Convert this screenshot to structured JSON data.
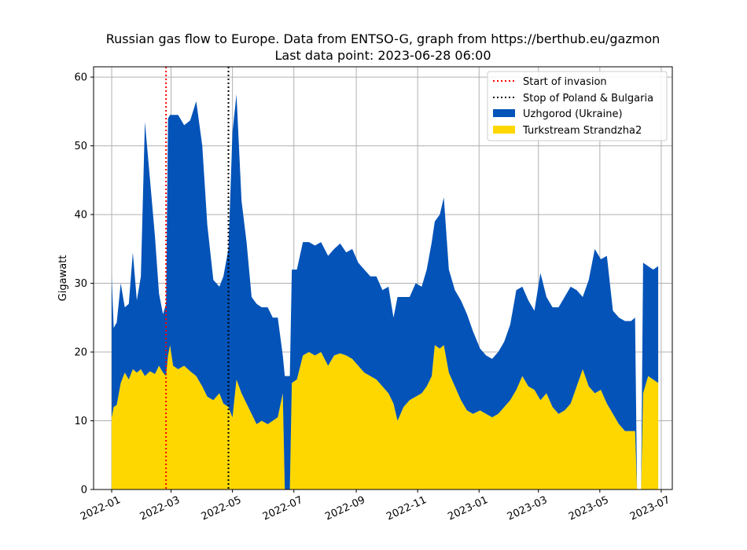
{
  "chart_data": {
    "type": "area",
    "title": "Russian gas flow to Europe. Data from ENTSO-G, graph from https://berthub.eu/gazmon",
    "subtitle": "Last data point: 2023-06-28 06:00",
    "xlabel": "",
    "ylabel": "Gigawatt",
    "xlim": [
      "2021-12-14",
      "2023-07-12"
    ],
    "ylim": [
      0,
      61.5
    ],
    "x_ticks": [
      "2022-01",
      "2022-03",
      "2022-05",
      "2022-07",
      "2022-09",
      "2022-11",
      "2023-01",
      "2023-03",
      "2023-05",
      "2023-07"
    ],
    "y_ticks": [
      0,
      10,
      20,
      30,
      40,
      50,
      60
    ],
    "grid": true,
    "legend_position": "top-right",
    "vlines": [
      {
        "name": "Start of invasion",
        "x": "2022-02-24",
        "color": "#ff0000",
        "style": "dotted"
      },
      {
        "name": "Stop of Poland & Bulgaria",
        "x": "2022-04-27",
        "color": "#000000",
        "style": "dotted"
      }
    ],
    "series": [
      {
        "name": "Turkstream Strandzha2",
        "color": "#ffd700",
        "stacked": true,
        "points": [
          [
            "2022-01-01",
            10.5
          ],
          [
            "2022-01-03",
            12
          ],
          [
            "2022-01-06",
            12.3
          ],
          [
            "2022-01-10",
            15.5
          ],
          [
            "2022-01-14",
            17
          ],
          [
            "2022-01-18",
            16
          ],
          [
            "2022-01-22",
            17.5
          ],
          [
            "2022-01-26",
            17
          ],
          [
            "2022-01-30",
            17.5
          ],
          [
            "2022-02-03",
            16.5
          ],
          [
            "2022-02-08",
            17.2
          ],
          [
            "2022-02-13",
            16.8
          ],
          [
            "2022-02-17",
            18
          ],
          [
            "2022-02-21",
            17
          ],
          [
            "2022-02-24",
            16.5
          ],
          [
            "2022-02-26",
            19.5
          ],
          [
            "2022-02-28",
            21
          ],
          [
            "2022-03-03",
            18
          ],
          [
            "2022-03-08",
            17.5
          ],
          [
            "2022-03-14",
            18
          ],
          [
            "2022-03-20",
            17.2
          ],
          [
            "2022-03-26",
            16.5
          ],
          [
            "2022-04-01",
            15
          ],
          [
            "2022-04-06",
            13.5
          ],
          [
            "2022-04-12",
            13
          ],
          [
            "2022-04-18",
            14
          ],
          [
            "2022-04-22",
            12.5
          ],
          [
            "2022-04-27",
            12
          ],
          [
            "2022-05-01",
            10.5
          ],
          [
            "2022-05-05",
            16
          ],
          [
            "2022-05-10",
            14
          ],
          [
            "2022-05-15",
            12.5
          ],
          [
            "2022-05-20",
            11
          ],
          [
            "2022-05-25",
            9.5
          ],
          [
            "2022-05-30",
            10
          ],
          [
            "2022-06-05",
            9.5
          ],
          [
            "2022-06-10",
            10
          ],
          [
            "2022-06-15",
            10.5
          ],
          [
            "2022-06-20",
            14
          ],
          [
            "2022-06-22",
            0
          ],
          [
            "2022-06-27",
            0
          ],
          [
            "2022-06-29",
            15.5
          ],
          [
            "2022-07-04",
            16
          ],
          [
            "2022-07-10",
            19.5
          ],
          [
            "2022-07-16",
            20
          ],
          [
            "2022-07-22",
            19.5
          ],
          [
            "2022-07-28",
            20
          ],
          [
            "2022-08-04",
            18
          ],
          [
            "2022-08-10",
            19.5
          ],
          [
            "2022-08-16",
            19.8
          ],
          [
            "2022-08-22",
            19.5
          ],
          [
            "2022-08-28",
            19
          ],
          [
            "2022-09-03",
            18
          ],
          [
            "2022-09-09",
            17
          ],
          [
            "2022-09-15",
            16.5
          ],
          [
            "2022-09-21",
            16
          ],
          [
            "2022-09-27",
            15
          ],
          [
            "2022-10-03",
            14
          ],
          [
            "2022-10-08",
            12.5
          ],
          [
            "2022-10-12",
            10
          ],
          [
            "2022-10-18",
            12
          ],
          [
            "2022-10-24",
            13
          ],
          [
            "2022-10-30",
            13.5
          ],
          [
            "2022-11-05",
            14
          ],
          [
            "2022-11-10",
            15
          ],
          [
            "2022-11-15",
            16.5
          ],
          [
            "2022-11-18",
            21
          ],
          [
            "2022-11-23",
            20.5
          ],
          [
            "2022-11-27",
            21
          ],
          [
            "2022-12-02",
            17
          ],
          [
            "2022-12-08",
            15
          ],
          [
            "2022-12-14",
            13
          ],
          [
            "2022-12-20",
            11.5
          ],
          [
            "2022-12-26",
            11
          ],
          [
            "2023-01-02",
            11.5
          ],
          [
            "2023-01-08",
            11
          ],
          [
            "2023-01-14",
            10.5
          ],
          [
            "2023-01-20",
            11
          ],
          [
            "2023-01-26",
            12
          ],
          [
            "2023-02-01",
            13
          ],
          [
            "2023-02-07",
            14.5
          ],
          [
            "2023-02-13",
            16.5
          ],
          [
            "2023-02-19",
            15
          ],
          [
            "2023-02-25",
            14.5
          ],
          [
            "2023-03-03",
            13
          ],
          [
            "2023-03-09",
            14
          ],
          [
            "2023-03-15",
            12
          ],
          [
            "2023-03-21",
            11
          ],
          [
            "2023-03-27",
            11.5
          ],
          [
            "2023-04-02",
            12.5
          ],
          [
            "2023-04-08",
            15
          ],
          [
            "2023-04-14",
            17.5
          ],
          [
            "2023-04-20",
            15
          ],
          [
            "2023-04-26",
            14
          ],
          [
            "2023-05-02",
            14.5
          ],
          [
            "2023-05-08",
            12.5
          ],
          [
            "2023-05-14",
            11
          ],
          [
            "2023-05-20",
            9.5
          ],
          [
            "2023-05-26",
            8.5
          ],
          [
            "2023-06-01",
            8.5
          ],
          [
            "2023-06-05",
            8.5
          ],
          [
            "2023-06-07",
            0
          ],
          [
            "2023-06-11",
            0
          ],
          [
            "2023-06-13",
            14
          ],
          [
            "2023-06-18",
            16.5
          ],
          [
            "2023-06-23",
            16
          ],
          [
            "2023-06-28",
            15.5
          ]
        ]
      },
      {
        "name": "Uzhgorod (Ukraine)",
        "color": "#0353b8",
        "stacked": true,
        "points": [
          [
            "2022-01-01",
            20.5
          ],
          [
            "2022-01-03",
            11.5
          ],
          [
            "2022-01-06",
            12
          ],
          [
            "2022-01-10",
            14.5
          ],
          [
            "2022-01-14",
            9.5
          ],
          [
            "2022-01-18",
            11
          ],
          [
            "2022-01-22",
            17
          ],
          [
            "2022-01-26",
            10.5
          ],
          [
            "2022-01-30",
            13.5
          ],
          [
            "2022-02-03",
            37
          ],
          [
            "2022-02-08",
            28
          ],
          [
            "2022-02-13",
            20
          ],
          [
            "2022-02-17",
            10.5
          ],
          [
            "2022-02-21",
            8.5
          ],
          [
            "2022-02-24",
            10.5
          ],
          [
            "2022-02-26",
            34.5
          ],
          [
            "2022-02-28",
            33.5
          ],
          [
            "2022-03-03",
            36.5
          ],
          [
            "2022-03-08",
            37
          ],
          [
            "2022-03-14",
            35
          ],
          [
            "2022-03-20",
            36.5
          ],
          [
            "2022-03-26",
            40
          ],
          [
            "2022-04-01",
            35
          ],
          [
            "2022-04-06",
            25
          ],
          [
            "2022-04-12",
            17.5
          ],
          [
            "2022-04-18",
            15.5
          ],
          [
            "2022-04-22",
            18.5
          ],
          [
            "2022-04-27",
            23
          ],
          [
            "2022-05-01",
            41.5
          ],
          [
            "2022-05-05",
            41.5
          ],
          [
            "2022-05-10",
            28
          ],
          [
            "2022-05-15",
            23.5
          ],
          [
            "2022-05-20",
            17
          ],
          [
            "2022-05-25",
            17.5
          ],
          [
            "2022-05-30",
            16.5
          ],
          [
            "2022-06-05",
            17
          ],
          [
            "2022-06-10",
            15
          ],
          [
            "2022-06-15",
            14.5
          ],
          [
            "2022-06-20",
            5.5
          ],
          [
            "2022-06-22",
            16.5
          ],
          [
            "2022-06-27",
            16.5
          ],
          [
            "2022-06-29",
            16.5
          ],
          [
            "2022-07-04",
            16
          ],
          [
            "2022-07-10",
            16.5
          ],
          [
            "2022-07-16",
            16
          ],
          [
            "2022-07-22",
            16
          ],
          [
            "2022-07-28",
            16
          ],
          [
            "2022-08-04",
            16
          ],
          [
            "2022-08-10",
            15.5
          ],
          [
            "2022-08-16",
            16
          ],
          [
            "2022-08-22",
            15
          ],
          [
            "2022-08-28",
            16
          ],
          [
            "2022-09-03",
            15
          ],
          [
            "2022-09-09",
            15
          ],
          [
            "2022-09-15",
            14.5
          ],
          [
            "2022-09-21",
            15
          ],
          [
            "2022-09-27",
            14
          ],
          [
            "2022-10-03",
            15.5
          ],
          [
            "2022-10-08",
            12.5
          ],
          [
            "2022-10-12",
            18
          ],
          [
            "2022-10-18",
            16
          ],
          [
            "2022-10-24",
            15
          ],
          [
            "2022-10-30",
            16.5
          ],
          [
            "2022-11-05",
            15.5
          ],
          [
            "2022-11-10",
            17
          ],
          [
            "2022-11-15",
            19.5
          ],
          [
            "2022-11-18",
            18
          ],
          [
            "2022-11-23",
            19.5
          ],
          [
            "2022-11-27",
            21.5
          ],
          [
            "2022-12-02",
            15
          ],
          [
            "2022-12-08",
            14
          ],
          [
            "2022-12-14",
            14.5
          ],
          [
            "2022-12-20",
            14
          ],
          [
            "2022-12-26",
            12
          ],
          [
            "2023-01-02",
            9
          ],
          [
            "2023-01-08",
            8.5
          ],
          [
            "2023-01-14",
            8.5
          ],
          [
            "2023-01-20",
            9
          ],
          [
            "2023-01-26",
            9.5
          ],
          [
            "2023-02-01",
            11
          ],
          [
            "2023-02-07",
            14.5
          ],
          [
            "2023-02-13",
            13
          ],
          [
            "2023-02-19",
            12.5
          ],
          [
            "2023-02-25",
            11.5
          ],
          [
            "2023-03-03",
            18.5
          ],
          [
            "2023-03-09",
            14
          ],
          [
            "2023-03-15",
            14.5
          ],
          [
            "2023-03-21",
            15.5
          ],
          [
            "2023-03-27",
            16.5
          ],
          [
            "2023-04-02",
            17
          ],
          [
            "2023-04-08",
            14
          ],
          [
            "2023-04-14",
            10.5
          ],
          [
            "2023-04-20",
            15.5
          ],
          [
            "2023-04-26",
            21
          ],
          [
            "2023-05-02",
            19
          ],
          [
            "2023-05-08",
            21.5
          ],
          [
            "2023-05-14",
            15
          ],
          [
            "2023-05-20",
            15.5
          ],
          [
            "2023-05-26",
            16
          ],
          [
            "2023-06-01",
            16
          ],
          [
            "2023-06-05",
            16.5
          ],
          [
            "2023-06-07",
            0
          ],
          [
            "2023-06-11",
            0
          ],
          [
            "2023-06-13",
            19
          ],
          [
            "2023-06-18",
            16
          ],
          [
            "2023-06-23",
            16
          ],
          [
            "2023-06-28",
            17
          ]
        ]
      }
    ]
  }
}
